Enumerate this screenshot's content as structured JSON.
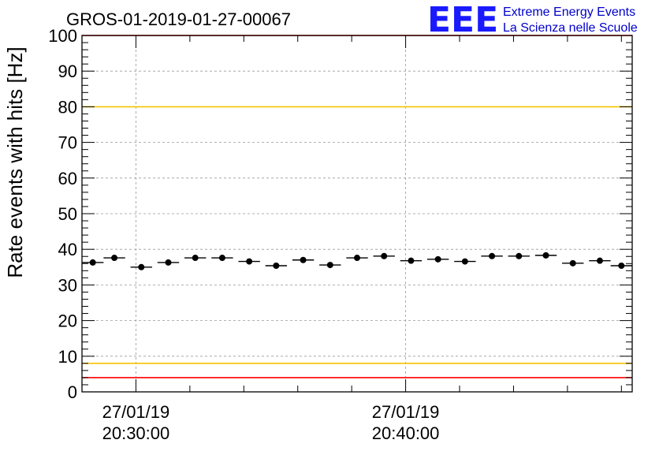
{
  "title": "GROS-01-2019-01-27-00067",
  "logo": {
    "mark": "EEE",
    "line1": "Extreme Energy Events",
    "line2": "La Scienza nelle Scuole",
    "color": "#1a1aff"
  },
  "chart_data": {
    "type": "scatter",
    "title": "GROS-01-2019-01-27-00067",
    "xlabel": "",
    "ylabel": "Rate events with hits [Hz]",
    "ylim": [
      0,
      100
    ],
    "y_ticks": [
      0,
      10,
      20,
      30,
      40,
      50,
      60,
      70,
      80,
      90,
      100
    ],
    "xlim_minutes": [
      20.0,
      45.5
    ],
    "x_ticks": [
      {
        "minute": 22.5,
        "date": "27/01/19",
        "time": "20:30:00"
      },
      {
        "minute": 35.0,
        "date": "27/01/19",
        "time": "20:40:00"
      }
    ],
    "grid": true,
    "series": [
      {
        "x_minutes": [
          20.5,
          21.5,
          22.75,
          24.0,
          25.25,
          26.5,
          27.75,
          29.0,
          30.25,
          31.5,
          32.75,
          34.0,
          35.25,
          36.5,
          37.75,
          39.0,
          40.25,
          41.5,
          42.75,
          44.0,
          45.0
        ],
        "x_halfwidth_minutes": 0.5,
        "values": [
          36.3,
          37.6,
          35.0,
          36.3,
          37.6,
          37.6,
          36.6,
          35.4,
          37.0,
          35.6,
          37.6,
          38.1,
          36.8,
          37.2,
          36.6,
          38.1,
          38.1,
          38.3,
          36.1,
          36.8,
          35.4
        ],
        "color": "#000000"
      }
    ],
    "reference_lines": [
      {
        "y": 80,
        "color": "#f5c400"
      },
      {
        "y": 8,
        "color": "#f5c400"
      },
      {
        "y": 100,
        "color": "#ff0000"
      },
      {
        "y": 4,
        "color": "#ff0000"
      }
    ]
  }
}
